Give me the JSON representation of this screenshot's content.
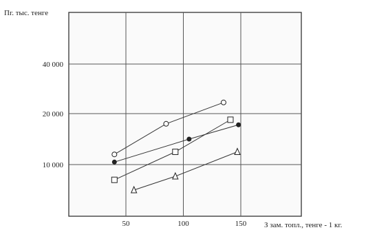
{
  "chart_data": {
    "type": "scatter",
    "ylabel": "Пг. тыс. тенге",
    "xlabel": "З зам. топл., тенге - 1 кг.",
    "x_ticks": [
      {
        "value": 50,
        "label": "50"
      },
      {
        "value": 100,
        "label": "100"
      },
      {
        "value": 150,
        "label": "150"
      }
    ],
    "y_ticks": [
      {
        "value": 10000,
        "label": "10 000"
      },
      {
        "value": 20000,
        "label": "20 000"
      },
      {
        "value": 40000,
        "label": "40 000"
      }
    ],
    "grid": true,
    "series": [
      {
        "marker": "open-circle",
        "points": [
          [
            40,
            12000
          ],
          [
            85,
            18000
          ],
          [
            135,
            24500
          ]
        ]
      },
      {
        "marker": "filled-circle",
        "points": [
          [
            40,
            10500
          ],
          [
            105,
            15000
          ],
          [
            148,
            17800
          ]
        ]
      },
      {
        "marker": "open-square",
        "points": [
          [
            40,
            7000
          ],
          [
            93,
            12500
          ],
          [
            141,
            18800
          ]
        ]
      },
      {
        "marker": "open-triangle",
        "points": [
          [
            57,
            5000
          ],
          [
            93,
            7700
          ],
          [
            147,
            12500
          ]
        ]
      }
    ]
  }
}
